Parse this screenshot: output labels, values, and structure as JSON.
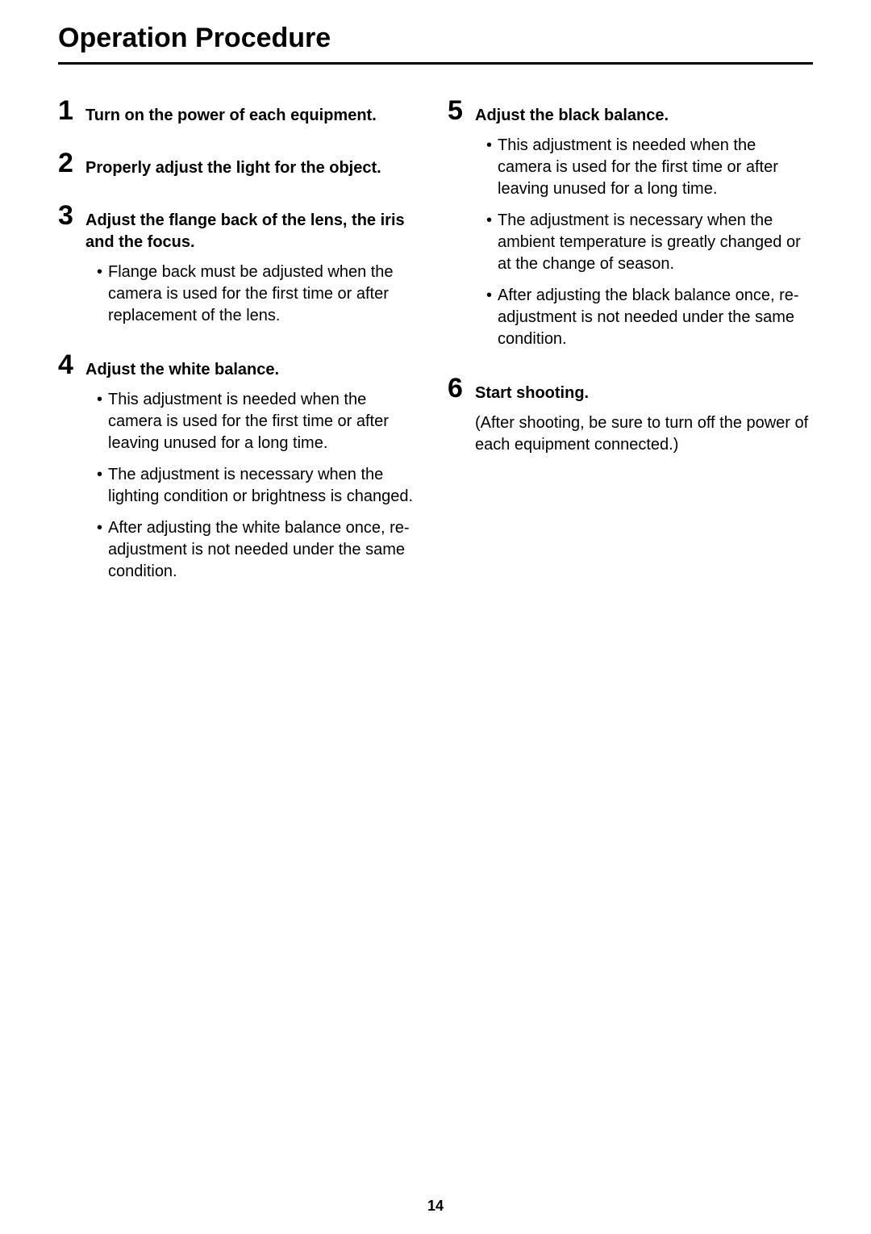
{
  "title": "Operation Procedure",
  "page_number": "14",
  "columns": {
    "left": [
      {
        "num": "1",
        "heading": "Turn on the power of each equipment.",
        "bullets": []
      },
      {
        "num": "2",
        "heading": "Properly adjust the light for the object.",
        "bullets": []
      },
      {
        "num": "3",
        "heading": "Adjust the flange back of the lens, the iris and the focus.",
        "bullets": [
          "Flange back must be adjusted when the camera is used for the first time or after replacement of the lens."
        ]
      },
      {
        "num": "4",
        "heading": "Adjust the white balance.",
        "bullets": [
          "This adjustment is needed when the camera is used for the first time or after leaving unused for a long time.",
          "The adjustment is necessary when the lighting condition or brightness is changed.",
          "After adjusting the white balance once, re-adjustment is not needed under the same condition."
        ]
      }
    ],
    "right": [
      {
        "num": "5",
        "heading": "Adjust the black balance.",
        "bullets": [
          "This adjustment is needed when the camera is used for the first time or after leaving unused for a long time.",
          "The adjustment is necessary when the ambient temperature is greatly changed or at the change of season.",
          "After adjusting the black balance once, re-adjustment is not needed under the same condition."
        ]
      },
      {
        "num": "6",
        "heading": "Start shooting.",
        "note": "(After shooting, be sure to turn off the power of each equipment connected.)",
        "bullets": []
      }
    ]
  }
}
